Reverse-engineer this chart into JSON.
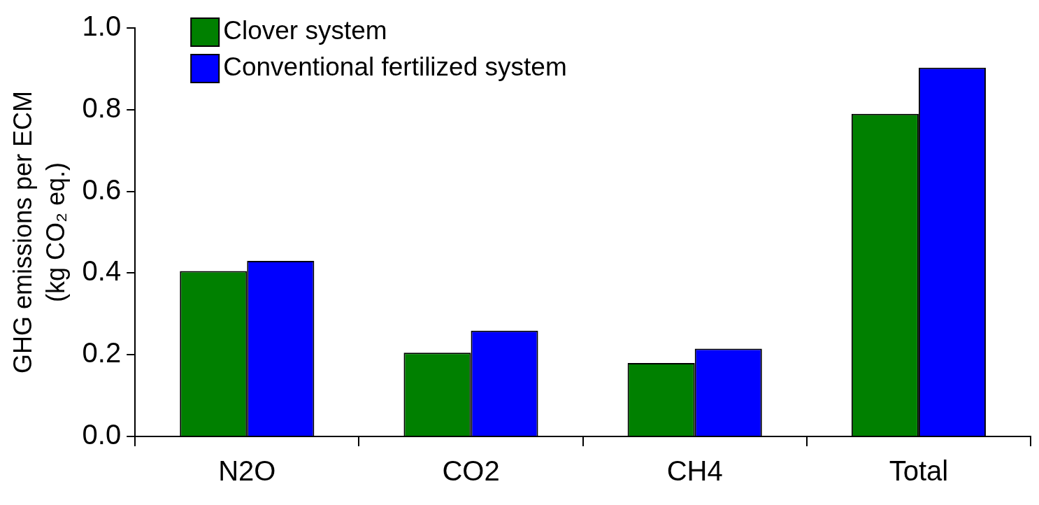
{
  "chart_data": {
    "type": "bar",
    "ylabel": "GHG emissions per ECM\n(kg CO₂ eq.)",
    "categories": [
      "N2O",
      "CO2",
      "CH4",
      "Total"
    ],
    "series": [
      {
        "name": "Clover system",
        "color": "#008000",
        "values": [
          0.405,
          0.205,
          0.18,
          0.79
        ]
      },
      {
        "name": "Conventional fertilized system",
        "color": "#0000ff",
        "values": [
          0.43,
          0.259,
          0.215,
          0.903
        ]
      }
    ],
    "ylim": [
      0,
      1
    ],
    "yticks": [
      {
        "value": 0,
        "label": "0.0"
      },
      {
        "value": 0.2,
        "label": "0.2"
      },
      {
        "value": 0.4,
        "label": "0.4"
      },
      {
        "value": 0.6,
        "label": "0.6"
      },
      {
        "value": 0.8,
        "label": "0.8"
      },
      {
        "value": 1,
        "label": "1.0"
      }
    ],
    "grid": false,
    "legend": "top left"
  }
}
